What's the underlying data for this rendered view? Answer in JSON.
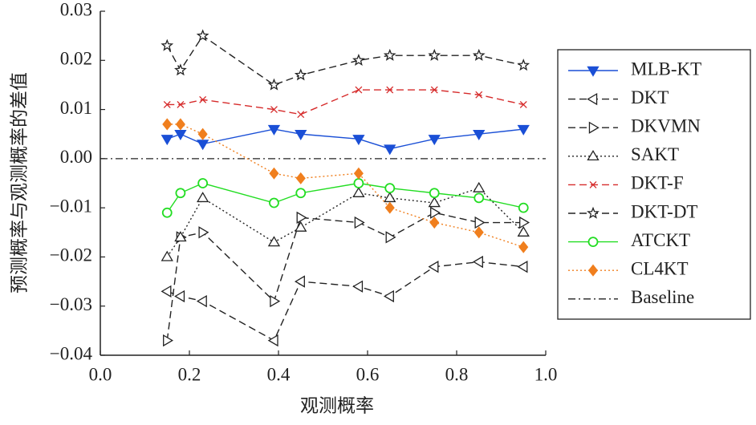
{
  "chart_data": {
    "type": "line",
    "xlabel": "观测概率",
    "ylabel": "预测概率与观测概率的差值",
    "x": [
      0.15,
      0.18,
      0.23,
      0.39,
      0.45,
      0.58,
      0.65,
      0.75,
      0.85,
      0.95
    ],
    "series": [
      {
        "name": "MLB-KT",
        "color": "#1a4fd6",
        "linestyle": "solid",
        "marker": "triangle-down",
        "marker_filled": true,
        "values": [
          0.004,
          0.005,
          0.003,
          0.006,
          0.005,
          0.004,
          0.002,
          0.004,
          0.005,
          0.006
        ]
      },
      {
        "name": "DKT",
        "color": "#222222",
        "linestyle": "dashed",
        "marker": "triangle-left",
        "marker_filled": false,
        "values": [
          -0.027,
          -0.028,
          -0.029,
          -0.037,
          -0.025,
          -0.026,
          -0.028,
          -0.022,
          -0.021,
          -0.022
        ]
      },
      {
        "name": "DKVMN",
        "color": "#222222",
        "linestyle": "dashed",
        "marker": "triangle-right",
        "marker_filled": false,
        "values": [
          -0.037,
          -0.016,
          -0.015,
          -0.029,
          -0.012,
          -0.013,
          -0.016,
          -0.011,
          -0.013,
          -0.013
        ]
      },
      {
        "name": "SAKT",
        "color": "#222222",
        "linestyle": "dotted",
        "marker": "triangle-up",
        "marker_filled": false,
        "values": [
          -0.02,
          -0.016,
          -0.008,
          -0.017,
          -0.014,
          -0.007,
          -0.008,
          -0.009,
          -0.006,
          -0.015
        ]
      },
      {
        "name": "DKT-F",
        "color": "#d62b2b",
        "linestyle": "dashed",
        "marker": "x",
        "marker_filled": false,
        "values": [
          0.011,
          0.011,
          0.012,
          0.01,
          0.009,
          0.014,
          0.014,
          0.014,
          0.013,
          0.011
        ]
      },
      {
        "name": "DKT-DT",
        "color": "#222222",
        "linestyle": "dashed",
        "marker": "star",
        "marker_filled": false,
        "values": [
          0.023,
          0.018,
          0.025,
          0.015,
          0.017,
          0.02,
          0.021,
          0.021,
          0.021,
          0.019
        ]
      },
      {
        "name": "ATCKT",
        "color": "#22dd22",
        "linestyle": "solid",
        "marker": "circle",
        "marker_filled": false,
        "values": [
          -0.011,
          -0.007,
          -0.005,
          -0.009,
          -0.007,
          -0.005,
          -0.006,
          -0.007,
          -0.008,
          -0.01
        ]
      },
      {
        "name": "CL4KT",
        "color": "#f07f1e",
        "linestyle": "dotted",
        "marker": "diamond",
        "marker_filled": true,
        "values": [
          0.007,
          0.007,
          0.005,
          -0.003,
          -0.004,
          -0.003,
          -0.01,
          -0.013,
          -0.015,
          -0.018
        ]
      }
    ],
    "baseline": {
      "name": "Baseline",
      "color": "#222222",
      "linestyle": "dashdot",
      "value": 0
    },
    "xlim": [
      0,
      1.0
    ],
    "xticks": [
      {
        "value": 0,
        "label": "0.0"
      },
      0.2,
      0.4,
      0.6,
      0.8,
      {
        "value": 1.0,
        "label": "1.0"
      }
    ],
    "ylim": [
      -0.04,
      0.03
    ],
    "yticks": [
      {
        "value": -0.04,
        "label": "−0.04"
      },
      {
        "value": -0.03,
        "label": "−0.03"
      },
      {
        "value": -0.02,
        "label": "−0.02"
      },
      {
        "value": -0.01,
        "label": "−0.01"
      },
      {
        "value": 0,
        "label": "0.00"
      },
      0.01,
      0.02,
      0.03
    ],
    "grid": false,
    "legend": "right"
  }
}
